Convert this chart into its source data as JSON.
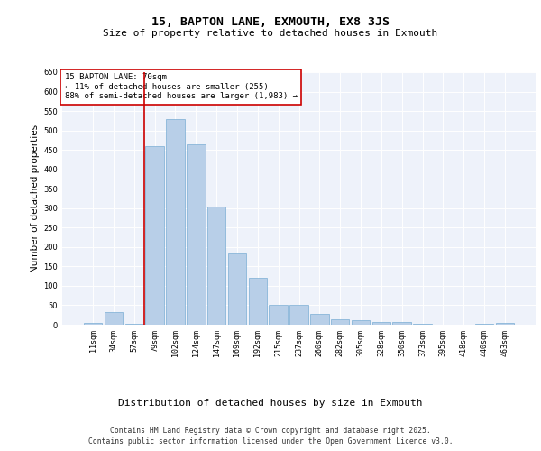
{
  "title": "15, BAPTON LANE, EXMOUTH, EX8 3JS",
  "subtitle": "Size of property relative to detached houses in Exmouth",
  "xlabel": "Distribution of detached houses by size in Exmouth",
  "ylabel": "Number of detached properties",
  "categories": [
    "11sqm",
    "34sqm",
    "57sqm",
    "79sqm",
    "102sqm",
    "124sqm",
    "147sqm",
    "169sqm",
    "192sqm",
    "215sqm",
    "237sqm",
    "260sqm",
    "282sqm",
    "305sqm",
    "328sqm",
    "350sqm",
    "373sqm",
    "395sqm",
    "418sqm",
    "440sqm",
    "463sqm"
  ],
  "values": [
    5,
    33,
    3,
    460,
    530,
    465,
    305,
    183,
    120,
    50,
    50,
    27,
    15,
    12,
    8,
    6,
    2,
    1,
    0,
    2,
    4
  ],
  "bar_color": "#b8cfe8",
  "bar_edge_color": "#7aadd4",
  "vline_color": "#cc0000",
  "annotation_text": "15 BAPTON LANE: 70sqm\n← 11% of detached houses are smaller (255)\n88% of semi-detached houses are larger (1,983) →",
  "annotation_box_color": "#ffffff",
  "annotation_box_edge": "#cc0000",
  "ylim": [
    0,
    650
  ],
  "yticks": [
    0,
    50,
    100,
    150,
    200,
    250,
    300,
    350,
    400,
    450,
    500,
    550,
    600,
    650
  ],
  "background_color": "#eef2fa",
  "grid_color": "#ffffff",
  "footer_line1": "Contains HM Land Registry data © Crown copyright and database right 2025.",
  "footer_line2": "Contains public sector information licensed under the Open Government Licence v3.0.",
  "title_fontsize": 9.5,
  "subtitle_fontsize": 8,
  "xlabel_fontsize": 8,
  "ylabel_fontsize": 7.5,
  "tick_fontsize": 6,
  "annotation_fontsize": 6.5,
  "footer_fontsize": 5.8
}
